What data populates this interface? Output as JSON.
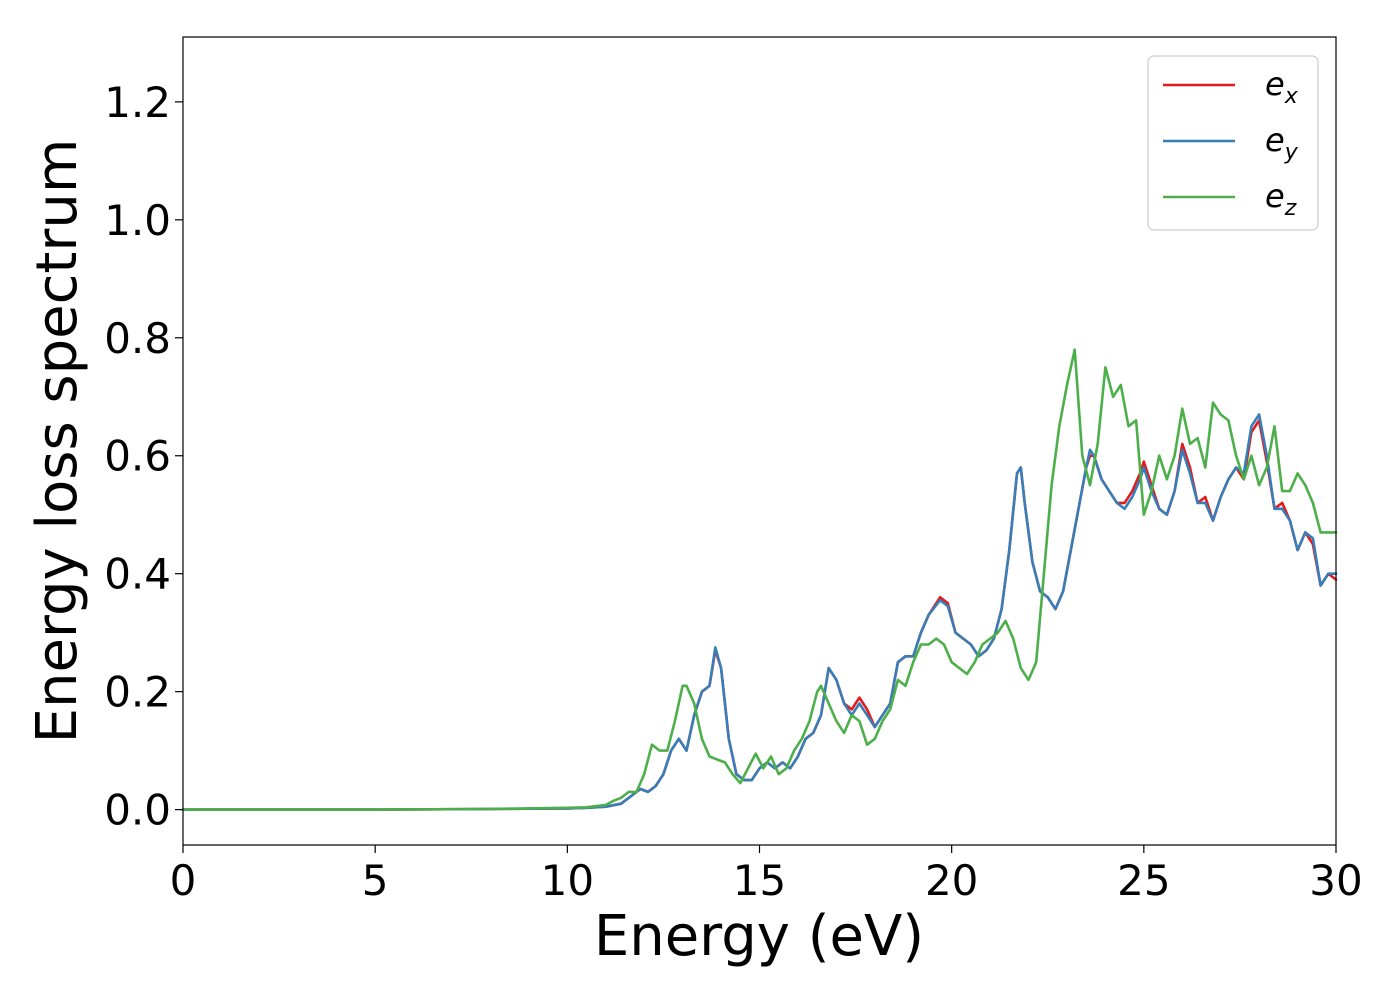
{
  "chart_data": {
    "type": "line",
    "xlabel": "Energy (eV)",
    "ylabel": "Energy loss spectrum",
    "xlim": [
      0,
      30
    ],
    "ylim": [
      -0.06,
      1.31
    ],
    "xticks": [
      0,
      5,
      10,
      15,
      20,
      25,
      30
    ],
    "xtick_labels": [
      "0",
      "5",
      "10",
      "15",
      "20",
      "25",
      "30"
    ],
    "yticks": [
      0.0,
      0.2,
      0.4,
      0.6,
      0.8,
      1.0,
      1.2
    ],
    "ytick_labels": [
      "0.0",
      "0.2",
      "0.4",
      "0.6",
      "0.8",
      "1.0",
      "1.2"
    ],
    "grid": false,
    "legend_position": "top-right",
    "legend": [
      {
        "base": "e",
        "sub": "x"
      },
      {
        "base": "e",
        "sub": "y"
      },
      {
        "base": "e",
        "sub": "z"
      }
    ],
    "series": [
      {
        "name": "e_x",
        "color": "#e41a1c",
        "x": [
          0,
          5,
          8,
          10,
          10.5,
          11,
          11.4,
          11.7,
          11.9,
          12.1,
          12.3,
          12.5,
          12.7,
          12.9,
          13.1,
          13.3,
          13.5,
          13.7,
          13.85,
          14.0,
          14.2,
          14.4,
          14.6,
          14.8,
          15.0,
          15.2,
          15.4,
          15.6,
          15.8,
          16.0,
          16.2,
          16.4,
          16.6,
          16.8,
          17.0,
          17.2,
          17.4,
          17.6,
          17.8,
          18.0,
          18.2,
          18.4,
          18.6,
          18.8,
          19.0,
          19.2,
          19.4,
          19.7,
          19.9,
          20.1,
          20.3,
          20.5,
          20.7,
          20.9,
          21.1,
          21.3,
          21.5,
          21.7,
          21.8,
          21.9,
          22.1,
          22.3,
          22.5,
          22.7,
          22.9,
          23.1,
          23.3,
          23.5,
          23.6,
          23.7,
          23.9,
          24.1,
          24.3,
          24.5,
          24.7,
          24.9,
          25.0,
          25.2,
          25.4,
          25.6,
          25.8,
          26.0,
          26.2,
          26.4,
          26.6,
          26.8,
          27.0,
          27.2,
          27.4,
          27.6,
          27.8,
          28.0,
          28.2,
          28.4,
          28.6,
          28.8,
          29.0,
          29.2,
          29.4,
          29.6,
          29.8,
          30.0
        ],
        "values": [
          0.0,
          0.0,
          0.001,
          0.002,
          0.003,
          0.005,
          0.01,
          0.025,
          0.035,
          0.03,
          0.04,
          0.06,
          0.1,
          0.12,
          0.1,
          0.16,
          0.2,
          0.21,
          0.27,
          0.24,
          0.12,
          0.06,
          0.05,
          0.05,
          0.07,
          0.08,
          0.07,
          0.08,
          0.07,
          0.09,
          0.12,
          0.13,
          0.16,
          0.24,
          0.22,
          0.18,
          0.17,
          0.19,
          0.17,
          0.14,
          0.16,
          0.18,
          0.25,
          0.26,
          0.26,
          0.3,
          0.33,
          0.36,
          0.35,
          0.3,
          0.29,
          0.28,
          0.26,
          0.27,
          0.29,
          0.34,
          0.44,
          0.57,
          0.58,
          0.52,
          0.42,
          0.37,
          0.36,
          0.34,
          0.37,
          0.44,
          0.51,
          0.58,
          0.6,
          0.6,
          0.56,
          0.54,
          0.52,
          0.52,
          0.54,
          0.57,
          0.59,
          0.55,
          0.51,
          0.5,
          0.54,
          0.62,
          0.58,
          0.52,
          0.53,
          0.49,
          0.53,
          0.56,
          0.58,
          0.56,
          0.64,
          0.66,
          0.59,
          0.51,
          0.52,
          0.49,
          0.44,
          0.47,
          0.45,
          0.38,
          0.4,
          0.39
        ]
      },
      {
        "name": "e_y",
        "color": "#377eb8",
        "x": [
          0,
          5,
          8,
          10,
          10.5,
          11,
          11.4,
          11.7,
          11.9,
          12.1,
          12.3,
          12.5,
          12.7,
          12.9,
          13.1,
          13.3,
          13.5,
          13.7,
          13.85,
          14.0,
          14.2,
          14.4,
          14.6,
          14.8,
          15.0,
          15.2,
          15.4,
          15.6,
          15.8,
          16.0,
          16.2,
          16.4,
          16.6,
          16.8,
          17.0,
          17.2,
          17.4,
          17.6,
          17.8,
          18.0,
          18.2,
          18.4,
          18.6,
          18.8,
          19.0,
          19.2,
          19.4,
          19.7,
          19.9,
          20.1,
          20.3,
          20.5,
          20.7,
          20.9,
          21.1,
          21.3,
          21.5,
          21.7,
          21.8,
          21.9,
          22.1,
          22.3,
          22.5,
          22.7,
          22.9,
          23.1,
          23.3,
          23.5,
          23.6,
          23.7,
          23.9,
          24.1,
          24.3,
          24.5,
          24.7,
          24.9,
          25.0,
          25.2,
          25.4,
          25.6,
          25.8,
          26.0,
          26.2,
          26.4,
          26.6,
          26.8,
          27.0,
          27.2,
          27.4,
          27.6,
          27.8,
          28.0,
          28.2,
          28.4,
          28.6,
          28.8,
          29.0,
          29.2,
          29.4,
          29.6,
          29.8,
          30.0
        ],
        "values": [
          0.0,
          0.0,
          0.001,
          0.002,
          0.003,
          0.005,
          0.01,
          0.025,
          0.035,
          0.03,
          0.04,
          0.06,
          0.1,
          0.12,
          0.1,
          0.16,
          0.2,
          0.21,
          0.275,
          0.24,
          0.12,
          0.06,
          0.05,
          0.05,
          0.07,
          0.08,
          0.07,
          0.08,
          0.07,
          0.09,
          0.12,
          0.13,
          0.16,
          0.24,
          0.22,
          0.18,
          0.16,
          0.18,
          0.16,
          0.14,
          0.16,
          0.18,
          0.25,
          0.26,
          0.26,
          0.3,
          0.33,
          0.355,
          0.345,
          0.3,
          0.29,
          0.28,
          0.26,
          0.27,
          0.29,
          0.34,
          0.44,
          0.57,
          0.58,
          0.52,
          0.42,
          0.37,
          0.36,
          0.34,
          0.37,
          0.44,
          0.51,
          0.58,
          0.61,
          0.6,
          0.56,
          0.54,
          0.52,
          0.51,
          0.53,
          0.56,
          0.58,
          0.54,
          0.51,
          0.5,
          0.54,
          0.61,
          0.57,
          0.52,
          0.52,
          0.49,
          0.53,
          0.56,
          0.58,
          0.57,
          0.65,
          0.67,
          0.6,
          0.51,
          0.51,
          0.49,
          0.44,
          0.47,
          0.46,
          0.38,
          0.4,
          0.4
        ]
      },
      {
        "name": "e_z",
        "color": "#4daf4a",
        "x": [
          0,
          5,
          8,
          10,
          10.5,
          11,
          11.2,
          11.4,
          11.6,
          11.8,
          12.0,
          12.2,
          12.4,
          12.6,
          12.8,
          13.0,
          13.1,
          13.3,
          13.5,
          13.7,
          13.9,
          14.1,
          14.3,
          14.5,
          14.7,
          14.9,
          15.1,
          15.3,
          15.5,
          15.7,
          15.9,
          16.1,
          16.3,
          16.5,
          16.6,
          16.8,
          17.0,
          17.2,
          17.4,
          17.6,
          17.8,
          18.0,
          18.2,
          18.4,
          18.6,
          18.8,
          19.0,
          19.2,
          19.4,
          19.6,
          19.8,
          20.0,
          20.2,
          20.4,
          20.6,
          20.8,
          21.0,
          21.2,
          21.4,
          21.6,
          21.8,
          22.0,
          22.2,
          22.4,
          22.6,
          22.8,
          23.0,
          23.2,
          23.4,
          23.6,
          23.8,
          24.0,
          24.2,
          24.4,
          24.6,
          24.8,
          25.0,
          25.2,
          25.4,
          25.6,
          25.8,
          26.0,
          26.2,
          26.4,
          26.6,
          26.8,
          27.0,
          27.2,
          27.4,
          27.6,
          27.8,
          28.0,
          28.2,
          28.4,
          28.6,
          28.8,
          29.0,
          29.2,
          29.4,
          29.6,
          29.8,
          30.0
        ],
        "values": [
          0.0,
          0.0,
          0.001,
          0.003,
          0.004,
          0.008,
          0.015,
          0.02,
          0.03,
          0.03,
          0.06,
          0.11,
          0.1,
          0.1,
          0.15,
          0.21,
          0.21,
          0.18,
          0.12,
          0.09,
          0.085,
          0.08,
          0.06,
          0.045,
          0.07,
          0.095,
          0.07,
          0.09,
          0.06,
          0.07,
          0.1,
          0.12,
          0.15,
          0.2,
          0.21,
          0.18,
          0.15,
          0.13,
          0.16,
          0.15,
          0.11,
          0.12,
          0.15,
          0.17,
          0.22,
          0.21,
          0.25,
          0.28,
          0.28,
          0.29,
          0.28,
          0.25,
          0.24,
          0.23,
          0.25,
          0.28,
          0.29,
          0.3,
          0.32,
          0.29,
          0.24,
          0.22,
          0.25,
          0.4,
          0.55,
          0.65,
          0.72,
          0.78,
          0.6,
          0.55,
          0.62,
          0.75,
          0.7,
          0.72,
          0.65,
          0.66,
          0.5,
          0.54,
          0.6,
          0.56,
          0.6,
          0.68,
          0.62,
          0.63,
          0.58,
          0.69,
          0.67,
          0.66,
          0.6,
          0.56,
          0.6,
          0.55,
          0.58,
          0.65,
          0.54,
          0.54,
          0.57,
          0.55,
          0.52,
          0.47,
          0.47,
          0.47
        ]
      }
    ]
  }
}
